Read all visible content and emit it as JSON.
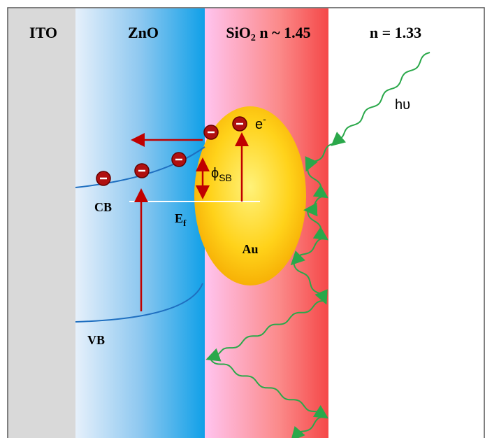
{
  "layers": {
    "ito": "ITO",
    "zno": "ZnO",
    "sio2": {
      "main": "SiO",
      "sub": "2",
      "rest": " n ~ 1.45"
    },
    "medium": "n = 1.33"
  },
  "labels": {
    "photon": "hυ",
    "electron": {
      "main": "e",
      "sup": "-"
    },
    "barrier": {
      "main": "ϕ",
      "sub": "SB"
    },
    "cb": "CB",
    "fermi": {
      "main": "E",
      "sub": "f"
    },
    "particle": "Au",
    "vb": "VB"
  }
}
